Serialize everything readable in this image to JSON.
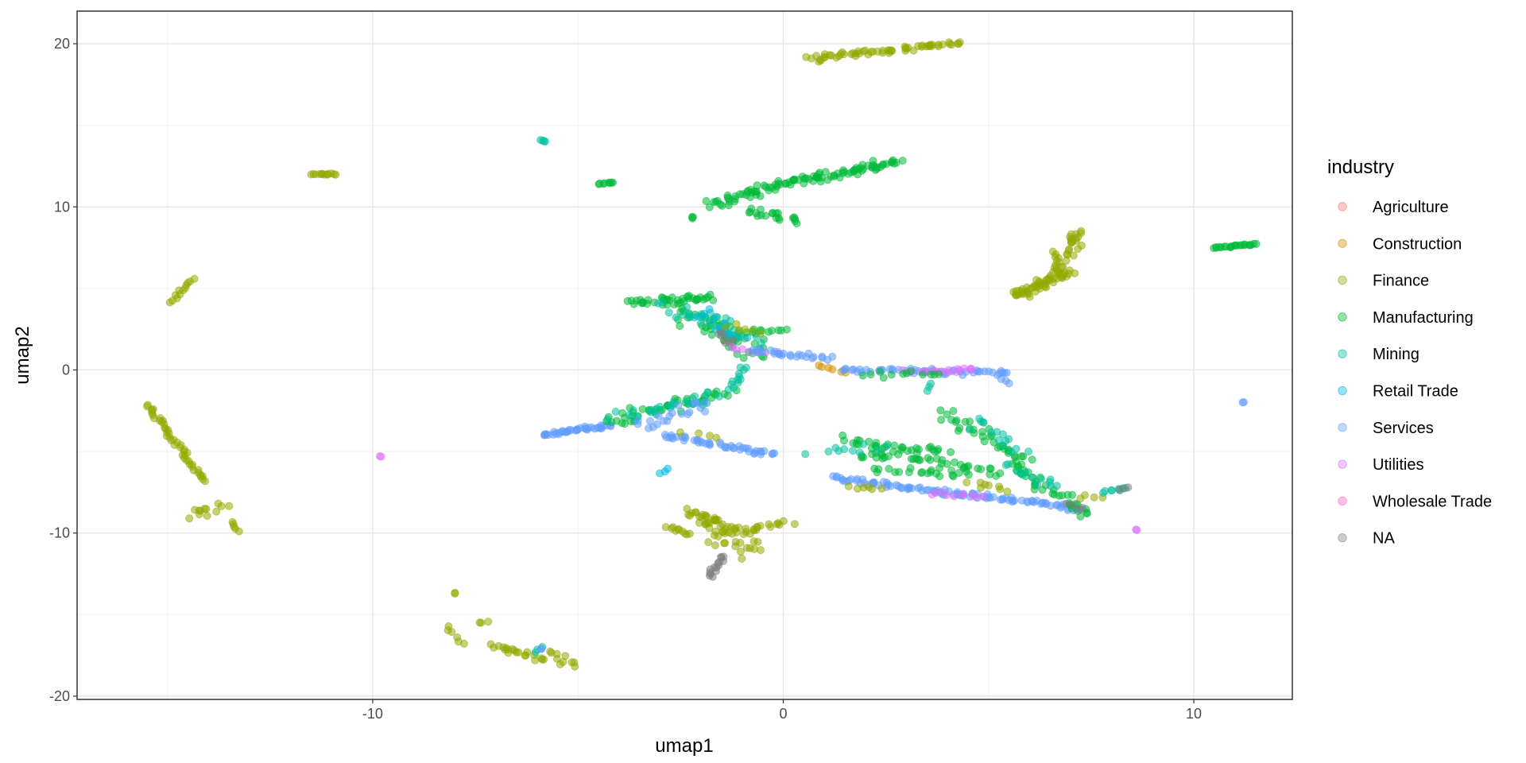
{
  "chart_data": {
    "type": "scatter",
    "title": "",
    "xlabel": "umap1",
    "ylabel": "umap2",
    "xlim": [
      -17.2,
      12.4
    ],
    "ylim": [
      -20.2,
      22
    ],
    "x_ticks": [
      -10,
      0,
      10
    ],
    "x_tick_labels": [
      "-10",
      "0",
      "10"
    ],
    "y_ticks": [
      -20,
      -10,
      0,
      10,
      20
    ],
    "y_tick_labels": [
      "-20",
      "-10",
      "0",
      "10",
      "20"
    ],
    "grid": true,
    "legend": {
      "title": "industry",
      "position": "right",
      "entries": [
        "Agriculture",
        "Construction",
        "Finance",
        "Manufacturing",
        "Mining",
        "Retail Trade",
        "Services",
        "Utilities",
        "Wholesale Trade",
        "NA"
      ]
    },
    "colors": {
      "Agriculture": "#F8766D",
      "Construction": "#D39200",
      "Finance": "#93AA00",
      "Manufacturing": "#00BA38",
      "Mining": "#00C19F",
      "Retail Trade": "#00B9E3",
      "Services": "#619CFF",
      "Utilities": "#DB72FB",
      "Wholesale Trade": "#FF61C3",
      "NA": "#808080"
    },
    "segments": [
      {
        "series": "Finance",
        "from": [
          0.6,
          19.1
        ],
        "to": [
          4.3,
          20.0
        ],
        "n": 60,
        "jitter": 0.2
      },
      {
        "series": "Finance",
        "from": [
          -11.5,
          12.0
        ],
        "to": [
          -10.9,
          12.0
        ],
        "n": 12,
        "jitter": 0.06
      },
      {
        "series": "Finance",
        "from": [
          -14.9,
          4.2
        ],
        "to": [
          -14.4,
          5.6
        ],
        "n": 12,
        "jitter": 0.08
      },
      {
        "series": "Finance",
        "from": [
          -15.5,
          -2.1
        ],
        "to": [
          -14.1,
          -6.8
        ],
        "n": 45,
        "jitter": 0.1
      },
      {
        "series": "Finance",
        "from": [
          -14.5,
          -9.0
        ],
        "to": [
          -13.7,
          -8.4
        ],
        "n": 12,
        "jitter": 0.3
      },
      {
        "series": "Finance",
        "from": [
          -13.4,
          -9.3
        ],
        "to": [
          -13.3,
          -9.9
        ],
        "n": 5,
        "jitter": 0.08
      },
      {
        "series": "Finance",
        "from": [
          5.6,
          4.5
        ],
        "to": [
          7.0,
          6.0
        ],
        "n": 55,
        "jitter": 0.35
      },
      {
        "series": "Finance",
        "from": [
          6.6,
          6.0
        ],
        "to": [
          7.3,
          8.5
        ],
        "n": 35,
        "jitter": 0.3
      },
      {
        "series": "Finance",
        "from": [
          -8.2,
          -15.7
        ],
        "to": [
          -7.8,
          -16.8
        ],
        "n": 6,
        "jitter": 0.1
      },
      {
        "series": "Finance",
        "from": [
          -7.1,
          -16.9
        ],
        "to": [
          -5.1,
          -18.1
        ],
        "n": 30,
        "jitter": 0.35
      },
      {
        "series": "Finance",
        "from": [
          -2.8,
          -9.6
        ],
        "to": [
          -2.3,
          -10.1
        ],
        "n": 10,
        "jitter": 0.1
      },
      {
        "series": "Finance",
        "from": [
          -2.0,
          -8.6
        ],
        "to": [
          -1.0,
          -11.0
        ],
        "n": 60,
        "jitter": 0.55
      },
      {
        "series": "Finance",
        "from": [
          -1.0,
          -9.8
        ],
        "to": [
          0.2,
          -9.4
        ],
        "n": 15,
        "jitter": 0.2
      },
      {
        "series": "NA",
        "from": [
          -1.8,
          -12.7
        ],
        "to": [
          -1.5,
          -11.4
        ],
        "n": 15,
        "jitter": 0.12
      },
      {
        "series": "Manufacturing",
        "from": [
          -1.8,
          10.1
        ],
        "to": [
          0.2,
          11.6
        ],
        "n": 45,
        "jitter": 0.3
      },
      {
        "series": "Manufacturing",
        "from": [
          0.3,
          11.5
        ],
        "to": [
          2.8,
          12.8
        ],
        "n": 60,
        "jitter": 0.3
      },
      {
        "series": "Manufacturing",
        "from": [
          -0.9,
          9.8
        ],
        "to": [
          0.4,
          9.2
        ],
        "n": 20,
        "jitter": 0.3
      },
      {
        "series": "Manufacturing",
        "from": [
          -4.5,
          11.4
        ],
        "to": [
          -4.1,
          11.5
        ],
        "n": 8,
        "jitter": 0.05
      },
      {
        "series": "Manufacturing",
        "from": [
          10.5,
          7.5
        ],
        "to": [
          11.5,
          7.7
        ],
        "n": 22,
        "jitter": 0.06
      },
      {
        "series": "Manufacturing",
        "from": [
          -2.2,
          9.3
        ],
        "to": [
          -2.2,
          9.4
        ],
        "n": 3,
        "jitter": 0.04
      },
      {
        "series": "Mining",
        "from": [
          -5.9,
          14.1
        ],
        "to": [
          -5.8,
          14.0
        ],
        "n": 4,
        "jitter": 0.04
      },
      {
        "series": "Manufacturing",
        "from": [
          -3.6,
          4.2
        ],
        "to": [
          -1.8,
          4.4
        ],
        "n": 40,
        "jitter": 0.3
      },
      {
        "series": "Manufacturing",
        "from": [
          -2.4,
          3.6
        ],
        "to": [
          -0.6,
          1.0
        ],
        "n": 50,
        "jitter": 0.55
      },
      {
        "series": "Mining",
        "from": [
          -2.6,
          3.8
        ],
        "to": [
          -0.8,
          1.8
        ],
        "n": 35,
        "jitter": 0.5
      },
      {
        "series": "Retail Trade",
        "from": [
          -2.0,
          3.5
        ],
        "to": [
          -1.0,
          2.0
        ],
        "n": 12,
        "jitter": 0.45
      },
      {
        "series": "Manufacturing",
        "from": [
          -0.9,
          2.4
        ],
        "to": [
          0.0,
          2.4
        ],
        "n": 10,
        "jitter": 0.15
      },
      {
        "series": "NA",
        "from": [
          -1.6,
          2.3
        ],
        "to": [
          -1.2,
          1.5
        ],
        "n": 8,
        "jitter": 0.2
      },
      {
        "series": "Utilities",
        "from": [
          -1.2,
          1.3
        ],
        "to": [
          -0.2,
          1.1
        ],
        "n": 8,
        "jitter": 0.2
      },
      {
        "series": "Finance",
        "from": [
          -1.4,
          2.6
        ],
        "to": [
          -0.6,
          2.4
        ],
        "n": 6,
        "jitter": 0.3
      },
      {
        "series": "Services",
        "from": [
          -0.8,
          1.2
        ],
        "to": [
          1.1,
          0.7
        ],
        "n": 25,
        "jitter": 0.15
      },
      {
        "series": "Construction",
        "from": [
          0.8,
          0.3
        ],
        "to": [
          1.5,
          -0.2
        ],
        "n": 6,
        "jitter": 0.1
      },
      {
        "series": "Services",
        "from": [
          1.4,
          0.0
        ],
        "to": [
          5.5,
          -0.2
        ],
        "n": 50,
        "jitter": 0.2
      },
      {
        "series": "Utilities",
        "from": [
          3.0,
          -0.1
        ],
        "to": [
          4.7,
          0.0
        ],
        "n": 20,
        "jitter": 0.15
      },
      {
        "series": "Manufacturing",
        "from": [
          2.0,
          -0.3
        ],
        "to": [
          3.8,
          -0.3
        ],
        "n": 12,
        "jitter": 0.2
      },
      {
        "series": "Mining",
        "from": [
          3.6,
          -0.8
        ],
        "to": [
          3.5,
          -1.3
        ],
        "n": 3,
        "jitter": 0.05
      },
      {
        "series": "Services",
        "from": [
          -5.9,
          -4.0
        ],
        "to": [
          -4.2,
          -3.4
        ],
        "n": 40,
        "jitter": 0.12
      },
      {
        "series": "Manufacturing",
        "from": [
          -4.3,
          -3.2
        ],
        "to": [
          -1.3,
          -1.3
        ],
        "n": 45,
        "jitter": 0.35
      },
      {
        "series": "Mining",
        "from": [
          -4.0,
          -3.0
        ],
        "to": [
          -1.5,
          -1.6
        ],
        "n": 25,
        "jitter": 0.35
      },
      {
        "series": "Services",
        "from": [
          -3.5,
          -3.6
        ],
        "to": [
          -1.8,
          -2.0
        ],
        "n": 20,
        "jitter": 0.35
      },
      {
        "series": "Mining",
        "from": [
          -1.3,
          -1.2
        ],
        "to": [
          -0.9,
          0.2
        ],
        "n": 12,
        "jitter": 0.12
      },
      {
        "series": "Services",
        "from": [
          -2.9,
          -4.0
        ],
        "to": [
          -0.2,
          -5.2
        ],
        "n": 45,
        "jitter": 0.18
      },
      {
        "series": "Finance",
        "from": [
          -2.4,
          -3.9
        ],
        "to": [
          -1.6,
          -4.2
        ],
        "n": 4,
        "jitter": 0.15
      },
      {
        "series": "Retail Trade",
        "from": [
          -3.0,
          -6.3
        ],
        "to": [
          -2.8,
          -6.1
        ],
        "n": 3,
        "jitter": 0.05
      },
      {
        "series": "Manufacturing",
        "from": [
          1.5,
          -4.3
        ],
        "to": [
          4.0,
          -5.0
        ],
        "n": 30,
        "jitter": 0.35
      },
      {
        "series": "Manufacturing",
        "from": [
          1.8,
          -5.0
        ],
        "to": [
          5.2,
          -6.2
        ],
        "n": 40,
        "jitter": 0.35
      },
      {
        "series": "Manufacturing",
        "from": [
          2.3,
          -6.2
        ],
        "to": [
          4.5,
          -6.3
        ],
        "n": 20,
        "jitter": 0.25
      },
      {
        "series": "Manufacturing",
        "from": [
          3.9,
          -2.6
        ],
        "to": [
          6.0,
          -5.8
        ],
        "n": 35,
        "jitter": 0.35
      },
      {
        "series": "Mining",
        "from": [
          4.6,
          -3.0
        ],
        "to": [
          5.8,
          -5.0
        ],
        "n": 15,
        "jitter": 0.3
      },
      {
        "series": "Mining",
        "from": [
          0.8,
          -5.0
        ],
        "to": [
          2.5,
          -4.8
        ],
        "n": 10,
        "jitter": 0.25
      },
      {
        "series": "Services",
        "from": [
          1.2,
          -6.6
        ],
        "to": [
          4.5,
          -7.7
        ],
        "n": 55,
        "jitter": 0.15
      },
      {
        "series": "Services",
        "from": [
          4.5,
          -7.6
        ],
        "to": [
          7.2,
          -8.5
        ],
        "n": 45,
        "jitter": 0.18
      },
      {
        "series": "Utilities",
        "from": [
          3.6,
          -7.5
        ],
        "to": [
          4.8,
          -7.8
        ],
        "n": 10,
        "jitter": 0.15
      },
      {
        "series": "Manufacturing",
        "from": [
          5.6,
          -5.8
        ],
        "to": [
          7.4,
          -9.0
        ],
        "n": 35,
        "jitter": 0.3
      },
      {
        "series": "Mining",
        "from": [
          5.6,
          -6.0
        ],
        "to": [
          6.6,
          -7.2
        ],
        "n": 12,
        "jitter": 0.3
      },
      {
        "series": "Finance",
        "from": [
          4.6,
          -7.0
        ],
        "to": [
          5.3,
          -7.4
        ],
        "n": 8,
        "jitter": 0.2
      },
      {
        "series": "Finance",
        "from": [
          1.6,
          -7.1
        ],
        "to": [
          2.4,
          -7.3
        ],
        "n": 6,
        "jitter": 0.15
      },
      {
        "series": "Finance",
        "from": [
          7.2,
          -7.8
        ],
        "to": [
          7.8,
          -7.7
        ],
        "n": 4,
        "jitter": 0.1
      },
      {
        "series": "NA",
        "from": [
          7.0,
          -8.2
        ],
        "to": [
          7.3,
          -8.6
        ],
        "n": 4,
        "jitter": 0.1
      },
      {
        "series": "Mining",
        "from": [
          7.8,
          -7.5
        ],
        "to": [
          8.4,
          -7.2
        ],
        "n": 8,
        "jitter": 0.12
      },
      {
        "series": "NA",
        "from": [
          8.2,
          -7.3
        ],
        "to": [
          8.4,
          -7.2
        ],
        "n": 3,
        "jitter": 0.05
      },
      {
        "series": "Services",
        "from": [
          5.2,
          -0.3
        ],
        "to": [
          5.5,
          -0.8
        ],
        "n": 4,
        "jitter": 0.1
      },
      {
        "series": "Services",
        "from": [
          11.2,
          -2.0
        ],
        "to": [
          11.2,
          -2.0
        ],
        "n": 2,
        "jitter": 0.04
      },
      {
        "series": "Utilities",
        "from": [
          8.6,
          -9.8
        ],
        "to": [
          8.6,
          -9.8
        ],
        "n": 2,
        "jitter": 0.04
      },
      {
        "series": "Utilities",
        "from": [
          -9.8,
          -5.3
        ],
        "to": [
          -9.8,
          -5.3
        ],
        "n": 2,
        "jitter": 0.04
      },
      {
        "series": "Finance",
        "from": [
          -8.0,
          -13.7
        ],
        "to": [
          -8.0,
          -13.7
        ],
        "n": 2,
        "jitter": 0.04
      },
      {
        "series": "Finance",
        "from": [
          -7.4,
          -15.5
        ],
        "to": [
          -7.2,
          -15.4
        ],
        "n": 3,
        "jitter": 0.05
      },
      {
        "series": "Mining",
        "from": [
          -6.0,
          -17.3
        ],
        "to": [
          -5.9,
          -17.0
        ],
        "n": 3,
        "jitter": 0.06
      },
      {
        "series": "Services",
        "from": [
          -5.9,
          -17.1
        ],
        "to": [
          -5.9,
          -17.1
        ],
        "n": 2,
        "jitter": 0.04
      }
    ]
  }
}
